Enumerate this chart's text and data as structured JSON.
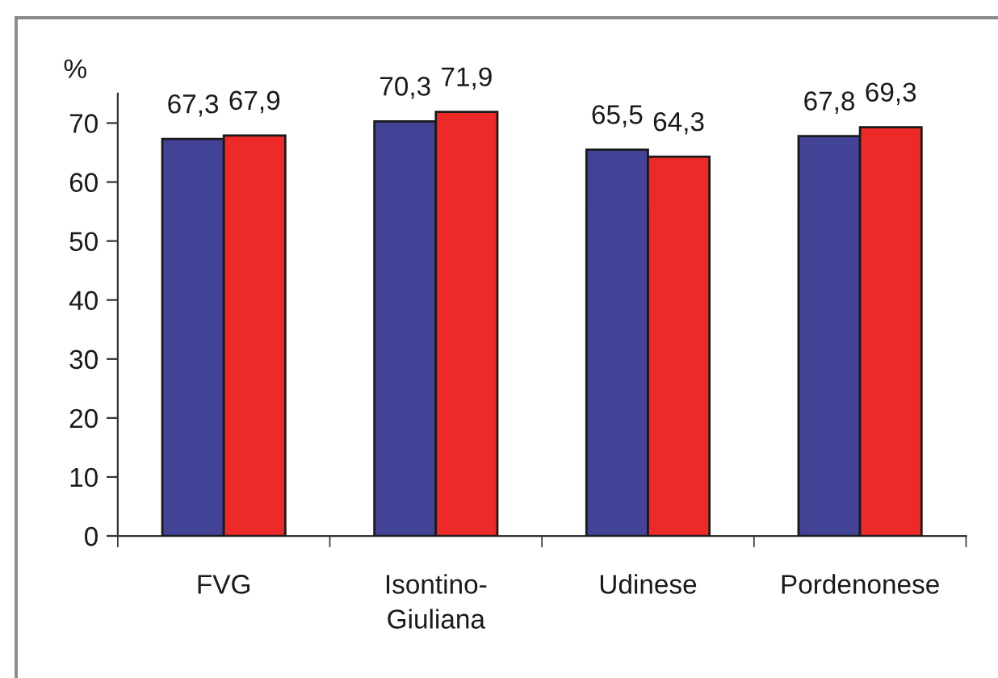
{
  "chart_data": {
    "type": "bar",
    "ylabel": "%",
    "categories": [
      "FVG",
      "Isontino-\nGiuliana",
      "Udinese",
      "Pordenonese"
    ],
    "series": [
      {
        "color": "#424297",
        "values": [
          67.3,
          70.3,
          65.5,
          67.8
        ],
        "value_labels": [
          "67,3",
          "70,3",
          "65,5",
          "67,8"
        ]
      },
      {
        "color": "#ee2a28",
        "values": [
          67.9,
          71.9,
          64.3,
          69.3
        ],
        "value_labels": [
          "67,9",
          "71,9",
          "64,3",
          "69,3"
        ]
      }
    ],
    "ylim": [
      0,
      75
    ],
    "yticks": [
      0,
      10,
      20,
      30,
      40,
      50,
      60,
      70
    ],
    "grid": false
  }
}
